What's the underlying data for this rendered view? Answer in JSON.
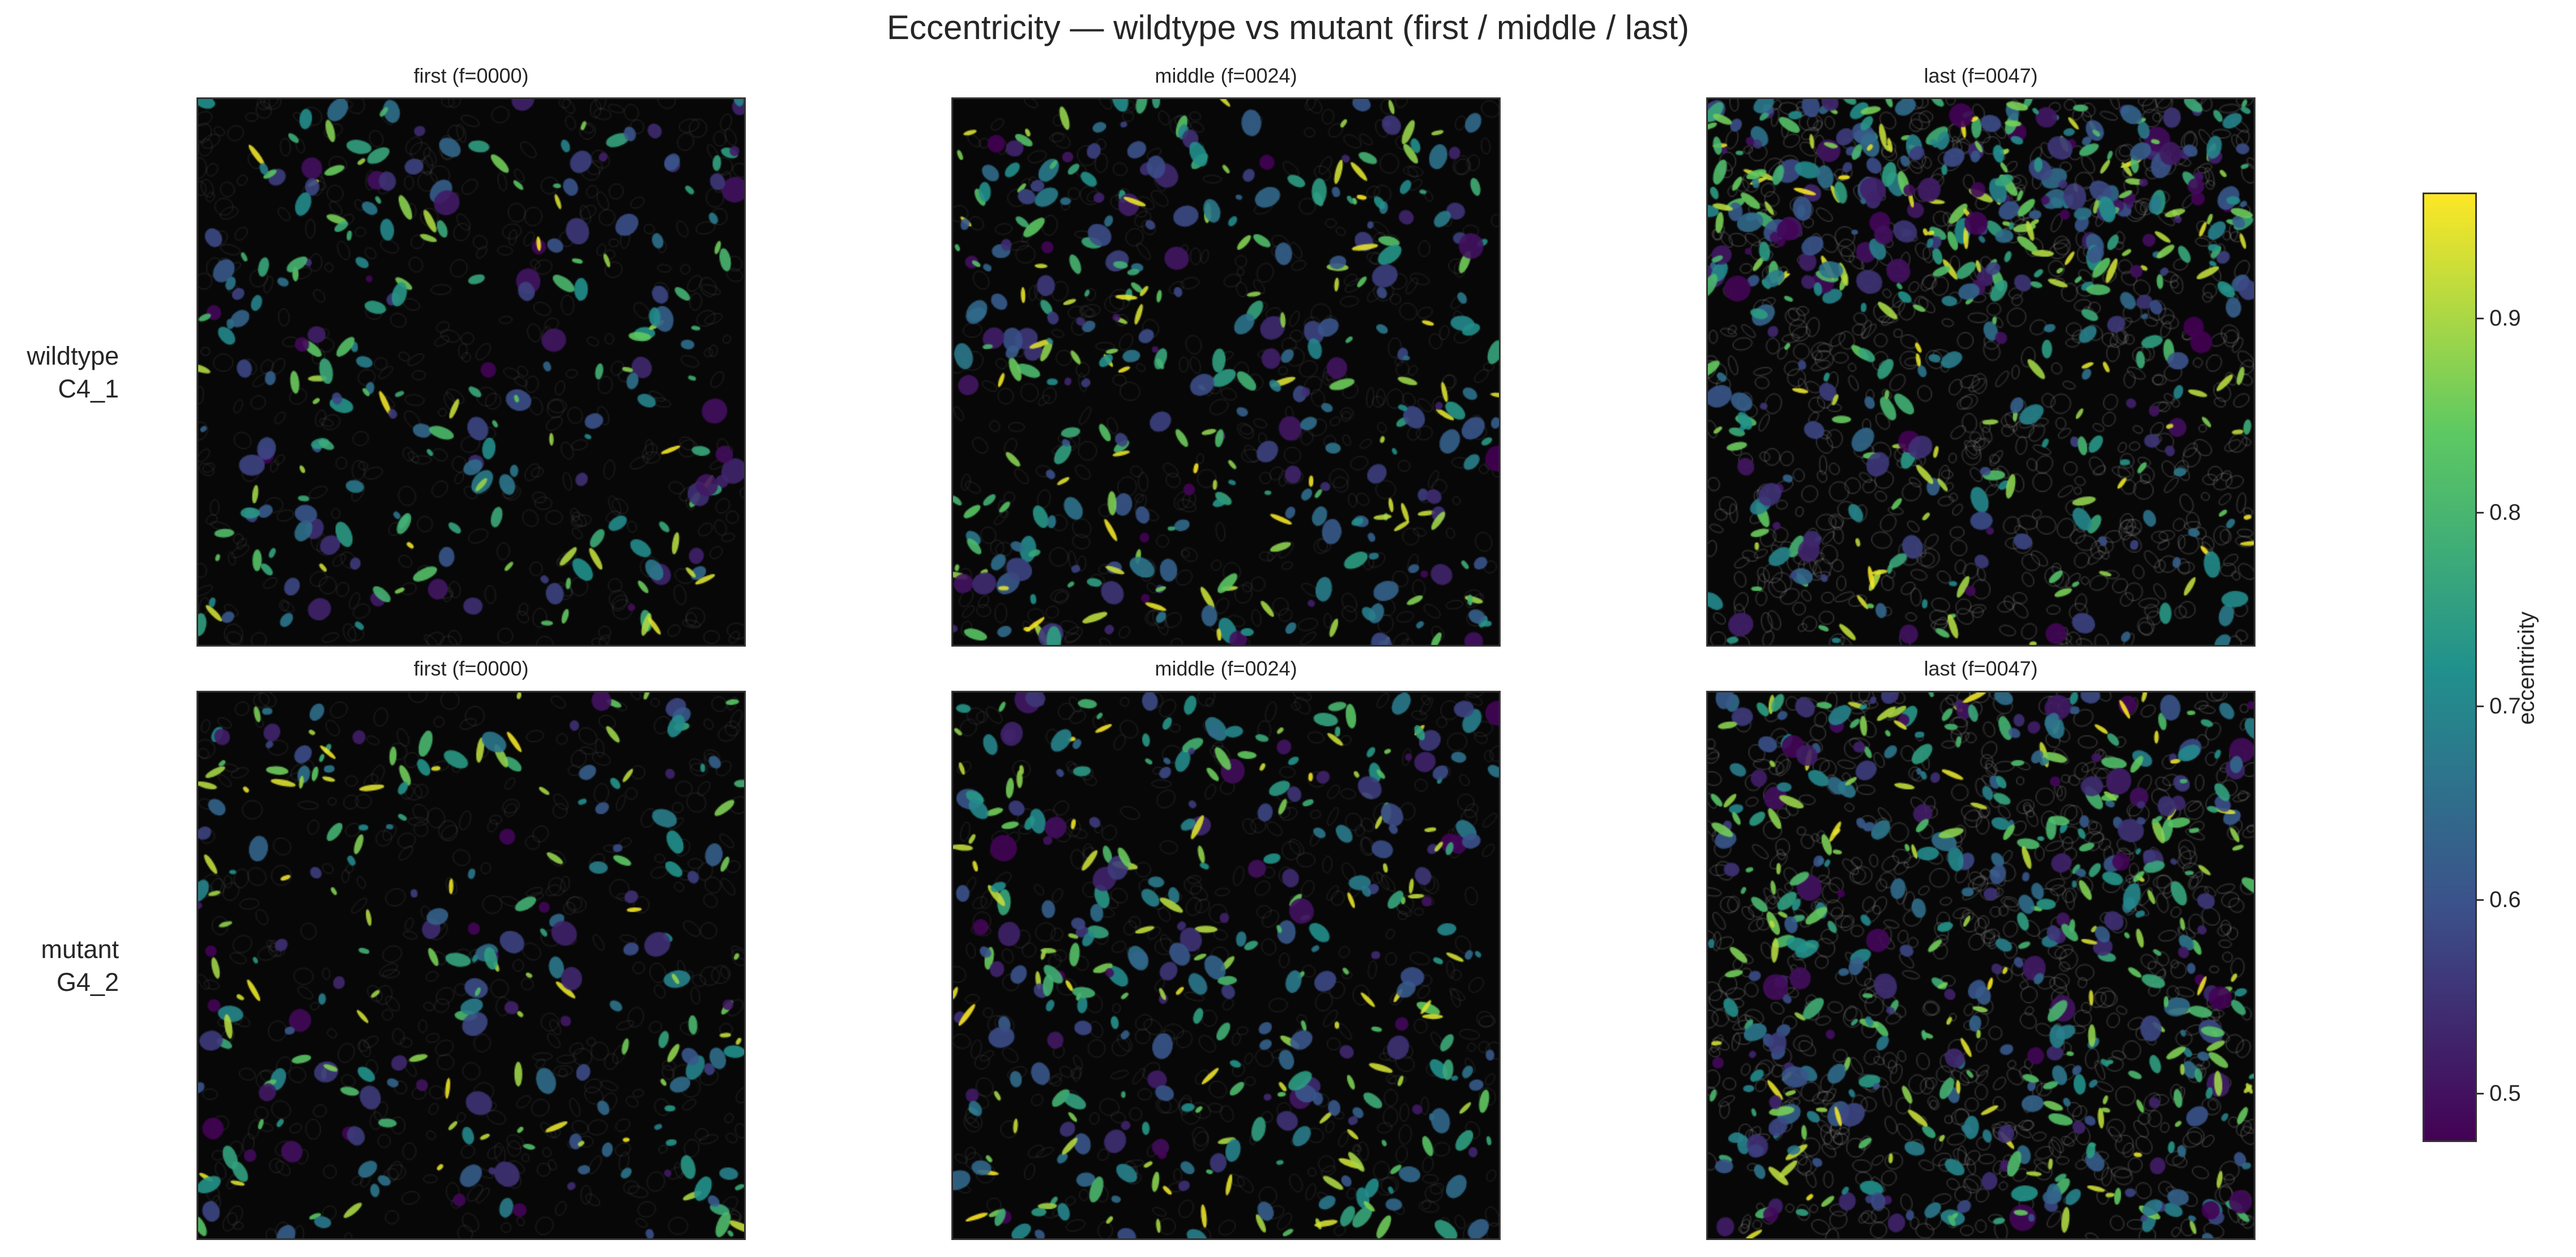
{
  "title": "Eccentricity — wildtype vs mutant (first / middle / last)",
  "rows": [
    {
      "line1": "wildtype",
      "line2": "C4_1"
    },
    {
      "line1": "mutant",
      "line2": "G4_2"
    }
  ],
  "panel_titles": [
    [
      "first (f=0000)",
      "middle (f=0024)",
      "last (f=0047)"
    ],
    [
      "first (f=0000)",
      "middle (f=0024)",
      "last (f=0047)"
    ]
  ],
  "colorbar": {
    "label": "eccentricity",
    "colormap": "viridis",
    "range": [
      0.475,
      0.965
    ],
    "ticks": [
      "0.5",
      "0.6",
      "0.7",
      "0.8",
      "0.9"
    ],
    "colors": [
      "#440154",
      "#3b528b",
      "#21918c",
      "#5ec962",
      "#fde725"
    ]
  },
  "chart_data": {
    "type": "heatmap",
    "title": "Eccentricity — wildtype vs mutant (first / middle / last)",
    "rows": [
      "wildtype C4_1",
      "mutant G4_2"
    ],
    "columns": [
      "first (f=0000)",
      "middle (f=0024)",
      "last (f=0047)"
    ],
    "value_label": "eccentricity",
    "value_range": [
      0.475,
      0.965
    ],
    "colorbar_ticks": [
      0.5,
      0.6,
      0.7,
      0.8,
      0.9
    ]
  }
}
